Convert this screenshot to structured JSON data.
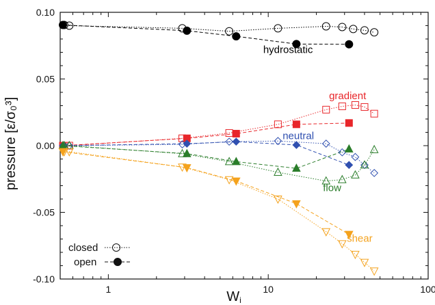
{
  "chart_data": {
    "type": "scatter",
    "xscale": "log",
    "xlim": [
      0.5,
      100
    ],
    "ylim": [
      -0.1,
      0.1
    ],
    "xticks": [
      1,
      10,
      100
    ],
    "yticks": [
      -0.1,
      -0.05,
      0.0,
      0.05,
      0.1
    ],
    "xtick_labels": [
      "1",
      "10",
      "100"
    ],
    "ytick_labels": [
      "-0.10",
      "-0.05",
      "0.00",
      "0.05",
      "0.10"
    ],
    "xlabel": "W",
    "xlabel_sub": "i",
    "ylabel": "pressure [ε/σ₀³]",
    "grid": false,
    "legend": {
      "position": "bottom-left",
      "entries": [
        {
          "label": "closed",
          "style": "open-circle-dotted"
        },
        {
          "label": "open",
          "style": "filled-circle-dashed"
        }
      ]
    },
    "series": [
      {
        "name": "hydrostatic",
        "color": "#000000",
        "marker": "circle",
        "variant": "closed",
        "x": [
          0.53,
          0.57,
          2.9,
          5.7,
          11.5,
          23,
          29,
          34,
          40,
          46
        ],
        "y": [
          0.0905,
          0.09,
          0.088,
          0.0858,
          0.088,
          0.0895,
          0.089,
          0.0875,
          0.0865,
          0.085
        ]
      },
      {
        "name": "hydrostatic",
        "color": "#000000",
        "marker": "circle",
        "variant": "open",
        "x": [
          0.52,
          3.1,
          6.3,
          15,
          32
        ],
        "y": [
          0.0905,
          0.0862,
          0.082,
          0.0762,
          0.076
        ]
      },
      {
        "name": "gradient",
        "color": "#e8262a",
        "marker": "square",
        "variant": "closed",
        "x": [
          0.53,
          0.57,
          2.9,
          5.7,
          11.5,
          23,
          29,
          35,
          40,
          46
        ],
        "y": [
          0.0,
          0.0,
          0.0055,
          0.0095,
          0.016,
          0.027,
          0.0295,
          0.0305,
          0.029,
          0.024
        ]
      },
      {
        "name": "gradient",
        "color": "#e8262a",
        "marker": "square",
        "variant": "open",
        "x": [
          0.52,
          3.1,
          6.3,
          15,
          32
        ],
        "y": [
          0.0,
          0.0055,
          0.009,
          0.016,
          0.017
        ]
      },
      {
        "name": "neutral",
        "color": "#3050b0",
        "marker": "diamond",
        "variant": "closed",
        "x": [
          0.53,
          0.57,
          2.9,
          5.7,
          11.5,
          23,
          29,
          35,
          40,
          46
        ],
        "y": [
          0.0,
          0.0,
          0.001,
          0.003,
          0.0035,
          0.0015,
          -0.005,
          -0.0085,
          -0.0145,
          -0.0205
        ]
      },
      {
        "name": "neutral",
        "color": "#3050b0",
        "marker": "diamond",
        "variant": "open",
        "x": [
          0.52,
          3.1,
          6.3,
          15,
          32
        ],
        "y": [
          0.0,
          0.0015,
          0.003,
          0.0005,
          -0.0145
        ]
      },
      {
        "name": "flow",
        "color": "#2a7d2a",
        "marker": "triangle-up",
        "variant": "closed",
        "x": [
          0.53,
          0.57,
          2.9,
          5.7,
          11.5,
          23,
          29,
          35,
          40,
          46
        ],
        "y": [
          0.0,
          0.0,
          -0.006,
          -0.012,
          -0.02,
          -0.0265,
          -0.0255,
          -0.022,
          -0.0145,
          -0.003
        ]
      },
      {
        "name": "flow",
        "color": "#2a7d2a",
        "marker": "triangle-up",
        "variant": "open",
        "x": [
          0.52,
          3.1,
          6.3,
          15,
          32
        ],
        "y": [
          0.0,
          -0.006,
          -0.012,
          -0.017,
          -0.0025
        ]
      },
      {
        "name": "shear",
        "color": "#f4a21d",
        "marker": "triangle-down",
        "variant": "closed",
        "x": [
          0.53,
          0.57,
          2.9,
          5.7,
          11.5,
          23,
          29,
          35,
          40,
          46
        ],
        "y": [
          -0.0045,
          -0.0045,
          -0.016,
          -0.0255,
          -0.04,
          -0.0645,
          -0.0735,
          -0.0815,
          -0.0875,
          -0.094
        ]
      },
      {
        "name": "shear",
        "color": "#f4a21d",
        "marker": "triangle-down",
        "variant": "open",
        "x": [
          0.52,
          3.1,
          6.3,
          15,
          32
        ],
        "y": [
          -0.0045,
          -0.0165,
          -0.0265,
          -0.0435,
          -0.0665
        ]
      }
    ],
    "annotations": [
      {
        "text": "hydrostatic",
        "color": "#000000",
        "x": 9.3,
        "y": 0.0695
      },
      {
        "text": "gradient",
        "color": "#e8262a",
        "x": 24,
        "y": 0.035
      },
      {
        "text": "neutral",
        "color": "#3050b0",
        "x": 12.3,
        "y": 0.005
      },
      {
        "text": "flow",
        "color": "#2a7d2a",
        "x": 22,
        "y": -0.034
      },
      {
        "text": "shear",
        "color": "#f4a21d",
        "x": 31,
        "y": -0.072
      }
    ]
  }
}
